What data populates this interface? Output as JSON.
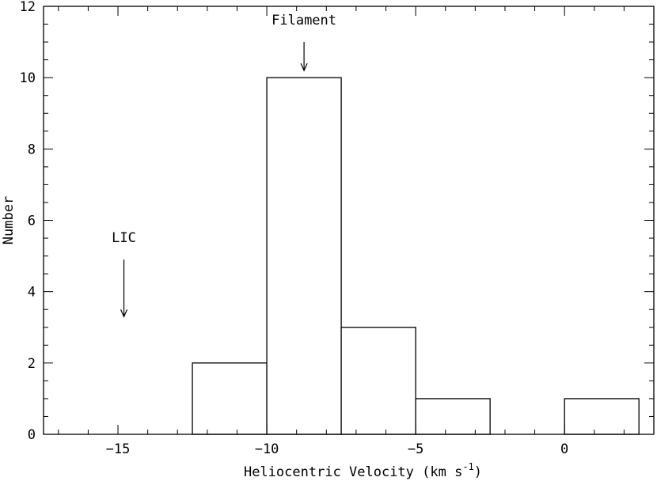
{
  "chart_data": {
    "type": "bar",
    "bins": [
      {
        "x_start": -12.5,
        "x_end": -10.0,
        "count": 2
      },
      {
        "x_start": -10.0,
        "x_end": -7.5,
        "count": 10
      },
      {
        "x_start": -7.5,
        "x_end": -5.0,
        "count": 3
      },
      {
        "x_start": -5.0,
        "x_end": -2.5,
        "count": 1
      },
      {
        "x_start": 0.0,
        "x_end": 2.5,
        "count": 1
      }
    ],
    "xlabel": "Heliocentric Velocity (km s",
    "xlabel_sup": "-1",
    "xlabel_close": ")",
    "ylabel": "Number",
    "xlim": [
      -17.5,
      3.0
    ],
    "ylim": [
      0,
      12
    ],
    "x_ticks": [
      -15,
      -10,
      -5,
      0
    ],
    "x_tick_labels": [
      "−15",
      "−10",
      "−5",
      "0"
    ],
    "y_ticks": [
      0,
      2,
      4,
      6,
      8,
      10,
      12
    ],
    "y_tick_labels": [
      "0",
      "2",
      "4",
      "6",
      "8",
      "10",
      "12"
    ],
    "x_minor_step": 1,
    "y_minor_step": 0.5,
    "grid": false,
    "annotations": [
      {
        "text": "Filament",
        "x": -8.75,
        "arrow_tip_y": 10.2,
        "arrow_tail_y": 11.0
      },
      {
        "text": "LIC",
        "x": -14.8,
        "arrow_tip_y": 3.3,
        "arrow_tail_y": 4.9
      }
    ],
    "colors": {
      "stroke": "#000000",
      "bar_fill": "#ffffff",
      "background": "#ffffff"
    }
  }
}
